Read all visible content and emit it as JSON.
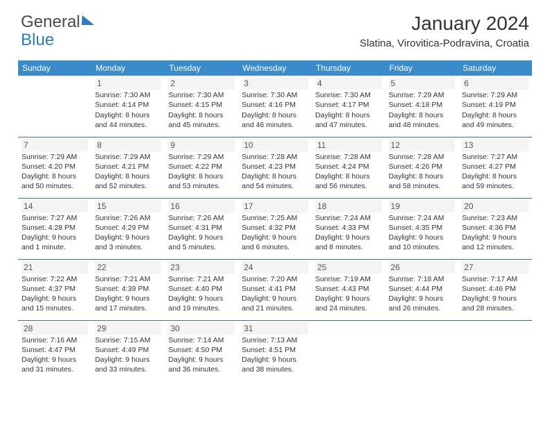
{
  "brand": {
    "part1": "General",
    "part2": "Blue"
  },
  "title": "January 2024",
  "location": "Slatina, Virovitica-Podravina, Croatia",
  "weekdays": [
    "Sunday",
    "Monday",
    "Tuesday",
    "Wednesday",
    "Thursday",
    "Friday",
    "Saturday"
  ],
  "colors": {
    "header_bg": "#3a8bc9",
    "rule": "#3a6ea8",
    "text": "#333333"
  },
  "start_weekday_index": 1,
  "days": [
    {
      "n": 1,
      "sunrise": "7:30 AM",
      "sunset": "4:14 PM",
      "daylight": "8 hours and 44 minutes."
    },
    {
      "n": 2,
      "sunrise": "7:30 AM",
      "sunset": "4:15 PM",
      "daylight": "8 hours and 45 minutes."
    },
    {
      "n": 3,
      "sunrise": "7:30 AM",
      "sunset": "4:16 PM",
      "daylight": "8 hours and 46 minutes."
    },
    {
      "n": 4,
      "sunrise": "7:30 AM",
      "sunset": "4:17 PM",
      "daylight": "8 hours and 47 minutes."
    },
    {
      "n": 5,
      "sunrise": "7:29 AM",
      "sunset": "4:18 PM",
      "daylight": "8 hours and 48 minutes."
    },
    {
      "n": 6,
      "sunrise": "7:29 AM",
      "sunset": "4:19 PM",
      "daylight": "8 hours and 49 minutes."
    },
    {
      "n": 7,
      "sunrise": "7:29 AM",
      "sunset": "4:20 PM",
      "daylight": "8 hours and 50 minutes."
    },
    {
      "n": 8,
      "sunrise": "7:29 AM",
      "sunset": "4:21 PM",
      "daylight": "8 hours and 52 minutes."
    },
    {
      "n": 9,
      "sunrise": "7:29 AM",
      "sunset": "4:22 PM",
      "daylight": "8 hours and 53 minutes."
    },
    {
      "n": 10,
      "sunrise": "7:28 AM",
      "sunset": "4:23 PM",
      "daylight": "8 hours and 54 minutes."
    },
    {
      "n": 11,
      "sunrise": "7:28 AM",
      "sunset": "4:24 PM",
      "daylight": "8 hours and 56 minutes."
    },
    {
      "n": 12,
      "sunrise": "7:28 AM",
      "sunset": "4:26 PM",
      "daylight": "8 hours and 58 minutes."
    },
    {
      "n": 13,
      "sunrise": "7:27 AM",
      "sunset": "4:27 PM",
      "daylight": "8 hours and 59 minutes."
    },
    {
      "n": 14,
      "sunrise": "7:27 AM",
      "sunset": "4:28 PM",
      "daylight": "9 hours and 1 minute."
    },
    {
      "n": 15,
      "sunrise": "7:26 AM",
      "sunset": "4:29 PM",
      "daylight": "9 hours and 3 minutes."
    },
    {
      "n": 16,
      "sunrise": "7:26 AM",
      "sunset": "4:31 PM",
      "daylight": "9 hours and 5 minutes."
    },
    {
      "n": 17,
      "sunrise": "7:25 AM",
      "sunset": "4:32 PM",
      "daylight": "9 hours and 6 minutes."
    },
    {
      "n": 18,
      "sunrise": "7:24 AM",
      "sunset": "4:33 PM",
      "daylight": "9 hours and 8 minutes."
    },
    {
      "n": 19,
      "sunrise": "7:24 AM",
      "sunset": "4:35 PM",
      "daylight": "9 hours and 10 minutes."
    },
    {
      "n": 20,
      "sunrise": "7:23 AM",
      "sunset": "4:36 PM",
      "daylight": "9 hours and 12 minutes."
    },
    {
      "n": 21,
      "sunrise": "7:22 AM",
      "sunset": "4:37 PM",
      "daylight": "9 hours and 15 minutes."
    },
    {
      "n": 22,
      "sunrise": "7:21 AM",
      "sunset": "4:39 PM",
      "daylight": "9 hours and 17 minutes."
    },
    {
      "n": 23,
      "sunrise": "7:21 AM",
      "sunset": "4:40 PM",
      "daylight": "9 hours and 19 minutes."
    },
    {
      "n": 24,
      "sunrise": "7:20 AM",
      "sunset": "4:41 PM",
      "daylight": "9 hours and 21 minutes."
    },
    {
      "n": 25,
      "sunrise": "7:19 AM",
      "sunset": "4:43 PM",
      "daylight": "9 hours and 24 minutes."
    },
    {
      "n": 26,
      "sunrise": "7:18 AM",
      "sunset": "4:44 PM",
      "daylight": "9 hours and 26 minutes."
    },
    {
      "n": 27,
      "sunrise": "7:17 AM",
      "sunset": "4:46 PM",
      "daylight": "9 hours and 28 minutes."
    },
    {
      "n": 28,
      "sunrise": "7:16 AM",
      "sunset": "4:47 PM",
      "daylight": "9 hours and 31 minutes."
    },
    {
      "n": 29,
      "sunrise": "7:15 AM",
      "sunset": "4:49 PM",
      "daylight": "9 hours and 33 minutes."
    },
    {
      "n": 30,
      "sunrise": "7:14 AM",
      "sunset": "4:50 PM",
      "daylight": "9 hours and 36 minutes."
    },
    {
      "n": 31,
      "sunrise": "7:13 AM",
      "sunset": "4:51 PM",
      "daylight": "9 hours and 38 minutes."
    }
  ],
  "labels": {
    "sunrise": "Sunrise:",
    "sunset": "Sunset:",
    "daylight": "Daylight:"
  }
}
